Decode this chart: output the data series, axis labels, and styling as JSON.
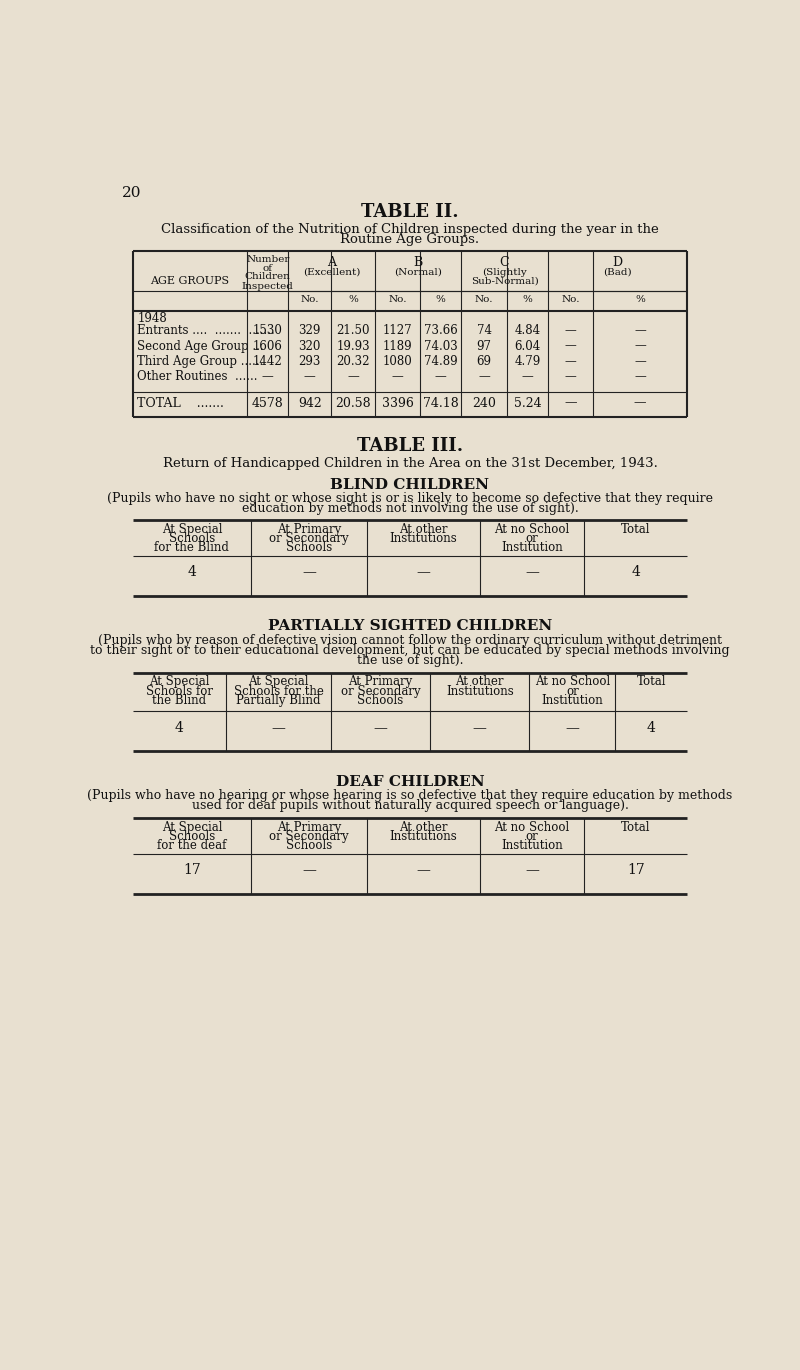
{
  "bg_color": "#e8e0d0",
  "page_number": "20",
  "table2_title": "TABLE II.",
  "table2_subtitle_1": "Classification of the Nutrition of Children inspected during the year in the",
  "table2_subtitle_2": "Routine Age Groups.",
  "table3_title": "TABLE III.",
  "table3_subtitle": "Return of Handicapped Children in the Area on the 31st December, 1943.",
  "blind_title": "BLIND CHILDREN",
  "blind_desc_1": "(Pupils who have no sight or whose sight is or is likely to become so defective that they require",
  "blind_desc_2": "education by methods not involving the use of sight).",
  "blind_col_headers": [
    "At Special\nSchools\nfor the Blind",
    "At Primary\nor Secondary\nSchools",
    "At other\nInstitutions",
    "At no School\nor\nInstitution",
    "Total"
  ],
  "blind_row": [
    "4",
    "—",
    "—",
    "—",
    "4"
  ],
  "partial_title": "PARTIALLY SIGHTED CHILDREN",
  "partial_desc_1": "(Pupils who by reason of defective vision cannot follow the ordinary curriculum without detriment",
  "partial_desc_2": "to their sight or to their educational development, but can be educated by special methods involving",
  "partial_desc_3": "the use of sight).",
  "partial_col_headers": [
    "At Special\nSchools for\nthe Blind",
    "At Special\nSchools for the\nPartially Blind",
    "At Primary\nor Secondary\nSchools",
    "At other\nInstitutions",
    "At no School\nor\nInstitution",
    "Total"
  ],
  "partial_row": [
    "4",
    "—",
    "—",
    "—",
    "—",
    "4"
  ],
  "deaf_title": "DEAF CHILDREN",
  "deaf_desc_1": "(Pupils who have no hearing or whose hearing is so defective that they require education by methods",
  "deaf_desc_2": "used for deaf pupils without naturally acquired speech or language).",
  "deaf_col_headers": [
    "At Special\nSchools\nfor the deaf",
    "At Primary\nor Secondary\nSchools",
    "At other\nInstitutions",
    "At no School\nor\nInstitution",
    "Total"
  ],
  "deaf_row": [
    "17",
    "—",
    "—",
    "—",
    "17"
  ],
  "t2_age_rows": [
    [
      "1948"
    ],
    [
      "Entrants ....  .......  .......",
      "1530",
      "329",
      "21.50",
      "1127",
      "73.66",
      "74",
      "4.84",
      "—",
      "—"
    ],
    [
      "Second Age Group ...",
      "1606",
      "320",
      "19.93",
      "1189",
      "74.03",
      "97",
      "6.04",
      "—",
      "—"
    ],
    [
      "Third Age Group ......",
      "1442",
      "293",
      "20.32",
      "1080",
      "74.89",
      "69",
      "4.79",
      "—",
      "—"
    ],
    [
      "Other Routines  ......",
      "—",
      "—",
      "—",
      "—",
      "—",
      "—",
      "—",
      "—",
      "—"
    ]
  ],
  "t2_total_row": [
    "TOTAL    .......",
    "4578",
    "942",
    "20.58",
    "3396",
    "74.18",
    "240",
    "5.24",
    "—",
    "—"
  ]
}
